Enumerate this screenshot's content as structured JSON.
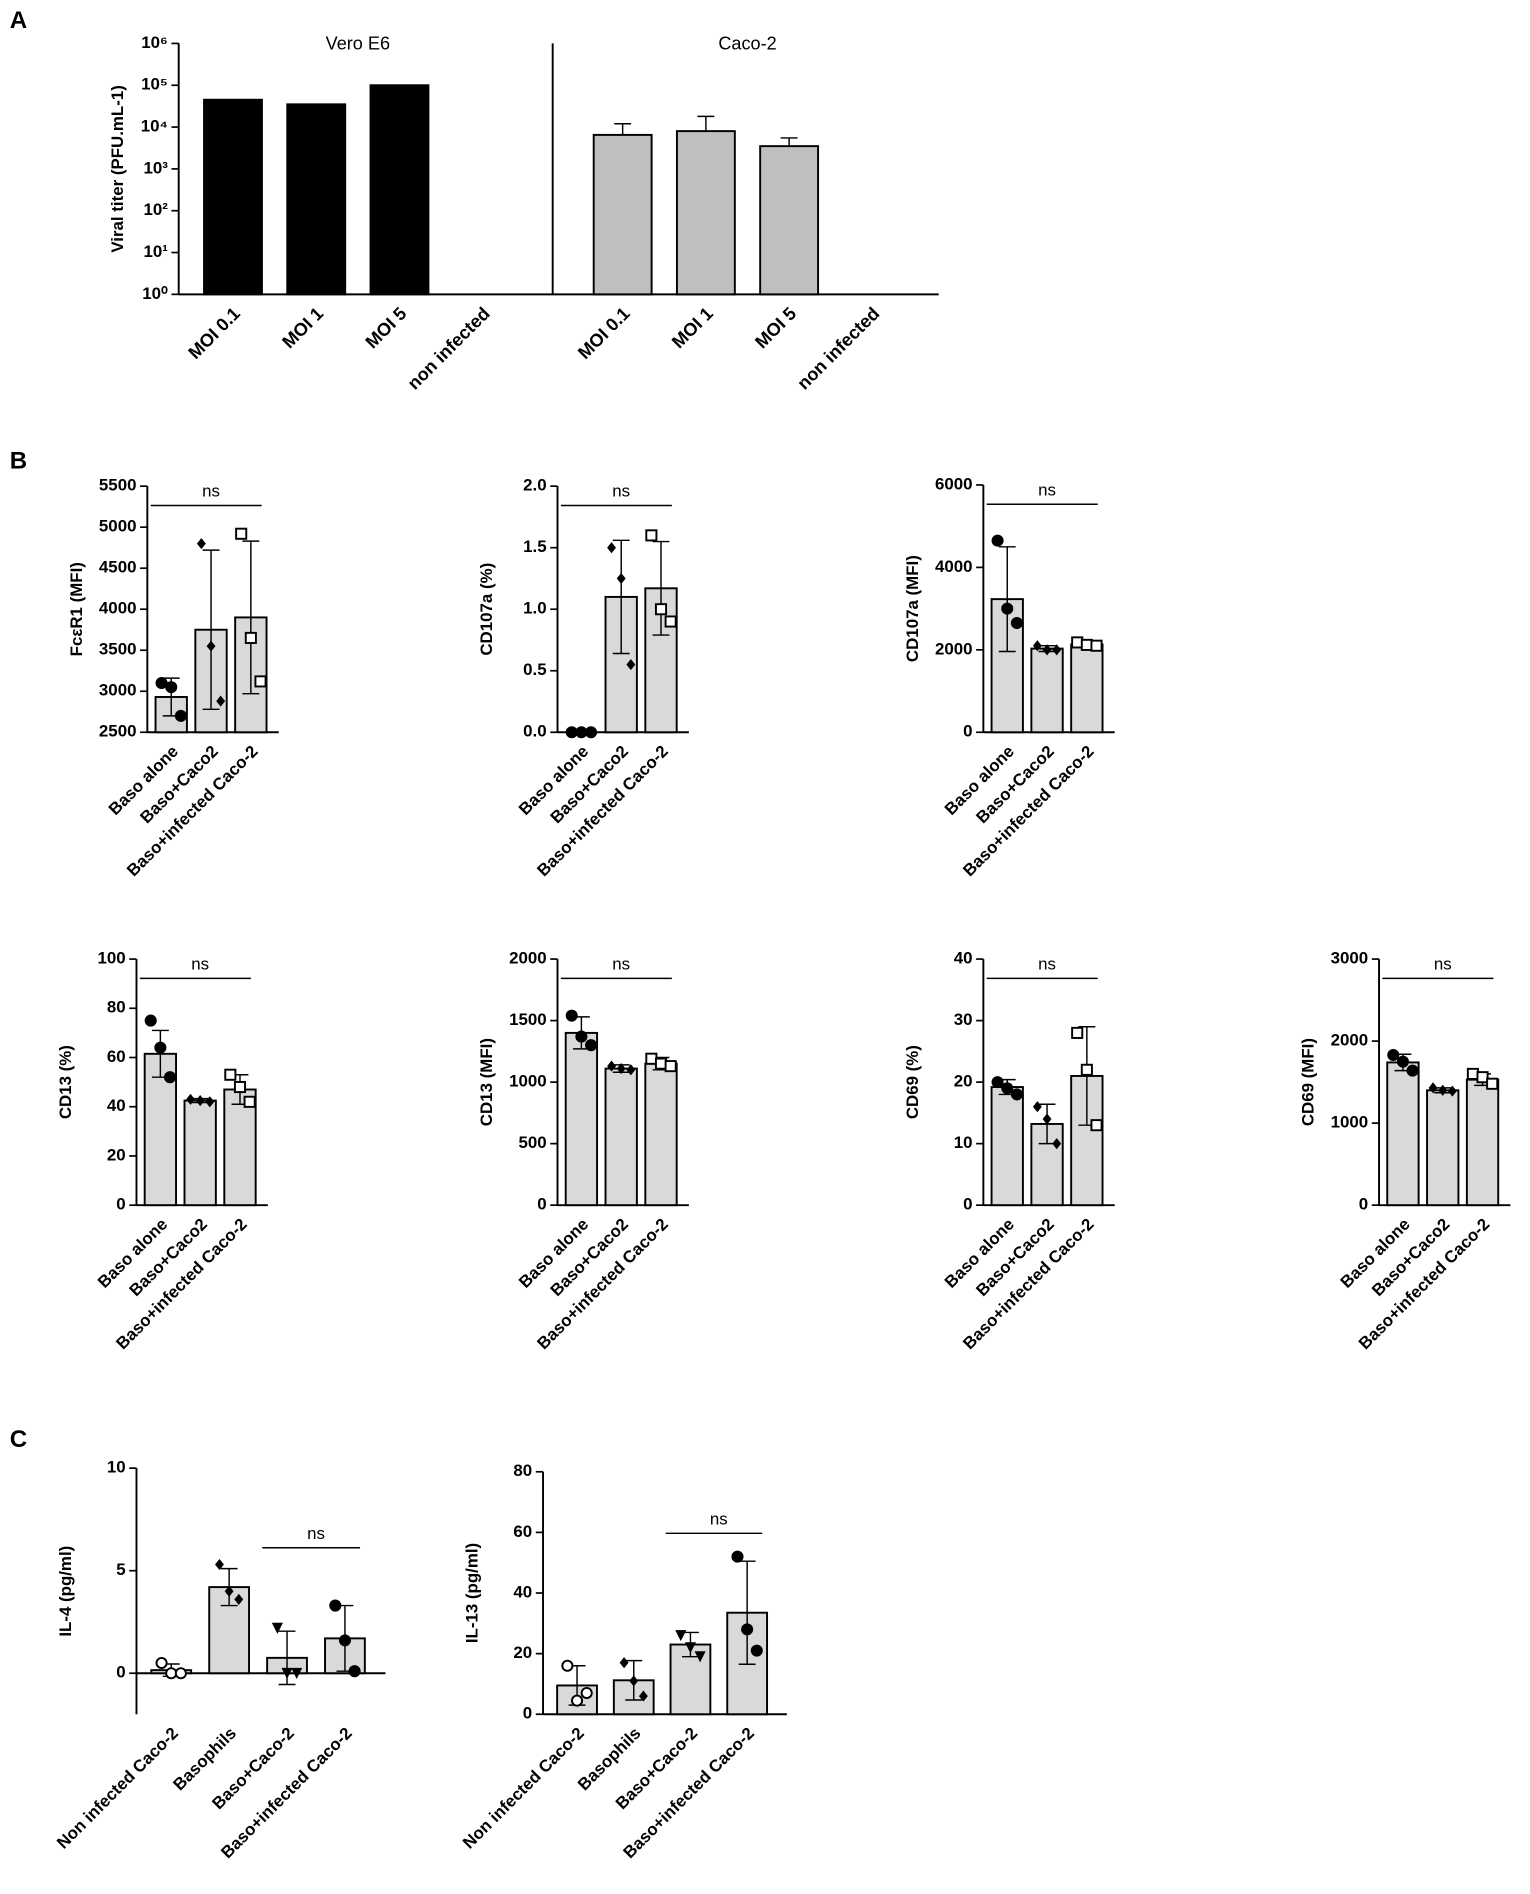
{
  "chart_data": [
    {
      "type": "bar",
      "panel": "A",
      "ylabel": "Viral titer (PFU.mL-1)",
      "log": true,
      "group_labels": [
        "Vero E6",
        "Caco-2"
      ],
      "group_colors": [
        "#000000",
        "#bfbfbf"
      ],
      "categories": [
        "MOI 0.1",
        "MOI 1",
        "MOI 5",
        "non infected",
        "MOI 0.1",
        "MOI 1",
        "MOI 5",
        "non infected"
      ],
      "values": [
        45000,
        35000,
        100000,
        null,
        6500,
        8000,
        3500,
        null
      ],
      "errors": [
        null,
        null,
        null,
        null,
        5500,
        10000,
        2000,
        null
      ],
      "ylim": [
        1,
        1000000
      ],
      "yticks": [
        {
          "value": 1,
          "label": "10⁰"
        },
        {
          "value": 10,
          "label": "10¹"
        },
        {
          "value": 100,
          "label": "10²"
        },
        {
          "value": 1000,
          "label": "10³"
        },
        {
          "value": 10000,
          "label": "10⁴"
        },
        {
          "value": 100000,
          "label": "10⁵"
        },
        {
          "value": 1000000,
          "label": "10⁶"
        }
      ]
    },
    {
      "type": "bar",
      "panel": "B",
      "ylabel": "FcεR1 (MFI)",
      "color": "#d9d9d9",
      "categories": [
        "Baso alone",
        "Baso+Caco2",
        "Baso+infected Caco-2"
      ],
      "markers": [
        "circle",
        "diamond",
        "square-open"
      ],
      "values": [
        2930,
        3750,
        3900
      ],
      "errors": [
        230,
        970,
        930
      ],
      "points": [
        [
          3100,
          3050,
          2700
        ],
        [
          4800,
          3550,
          2880
        ],
        [
          4920,
          3650,
          3120
        ]
      ],
      "comparison": {
        "label": "ns",
        "between": [
          "Baso alone",
          "Baso+infected Caco-2"
        ]
      },
      "ylim": [
        2500,
        5500
      ],
      "yticks": [
        2500,
        3000,
        3500,
        4000,
        4500,
        5000,
        5500
      ]
    },
    {
      "type": "bar",
      "ylabel": "CD107a (%)",
      "color": "#d9d9d9",
      "categories": [
        "Baso alone",
        "Baso+Caco2",
        "Baso+infected Caco-2"
      ],
      "markers": [
        "circle",
        "diamond",
        "square-open"
      ],
      "values": [
        0,
        1.1,
        1.17
      ],
      "errors": [
        0,
        0.46,
        0.38
      ],
      "points": [
        [
          0,
          0,
          0
        ],
        [
          1.5,
          1.25,
          0.55
        ],
        [
          1.6,
          1.0,
          0.9
        ]
      ],
      "comparison": {
        "label": "ns",
        "between": [
          "Baso alone",
          "Baso+infected Caco-2"
        ]
      },
      "ylim": [
        0,
        2
      ],
      "yticks": [
        {
          "value": 0,
          "label": "0.0"
        },
        0.5,
        {
          "value": 1,
          "label": "1.0"
        },
        1.5,
        {
          "value": 2,
          "label": "2.0"
        }
      ]
    },
    {
      "type": "bar",
      "ylabel": "CD107a (MFI)",
      "color": "#d9d9d9",
      "categories": [
        "Baso alone",
        "Baso+Caco2",
        "Baso+infected Caco-2"
      ],
      "markers": [
        "circle",
        "diamond",
        "square-open"
      ],
      "values": [
        3230,
        2030,
        2130
      ],
      "errors": [
        1270,
        70,
        60
      ],
      "points": [
        [
          4650,
          3000,
          2650
        ],
        [
          2100,
          2000,
          2000
        ],
        [
          2180,
          2120,
          2100
        ]
      ],
      "comparison": {
        "label": "ns",
        "between": [
          "Baso alone",
          "Baso+infected Caco-2"
        ]
      },
      "ylim": [
        0,
        6000
      ],
      "yticks": [
        0,
        2000,
        4000,
        6000
      ]
    },
    {
      "type": "bar",
      "ylabel": "CD13 (%)",
      "color": "#d9d9d9",
      "categories": [
        "Baso alone",
        "Baso+Caco2",
        "Baso+infected Caco-2"
      ],
      "markers": [
        "circle",
        "diamond",
        "square-open"
      ],
      "values": [
        61.5,
        42.5,
        47
      ],
      "errors": [
        9.5,
        0.8,
        6
      ],
      "points": [
        [
          75,
          64,
          52
        ],
        [
          43,
          42.5,
          42
        ],
        [
          53,
          48,
          42
        ]
      ],
      "comparison": {
        "label": "ns",
        "between": [
          "Baso alone",
          "Baso+infected Caco-2"
        ]
      },
      "ylim": [
        0,
        100
      ],
      "yticks": [
        0,
        20,
        40,
        60,
        80,
        100
      ]
    },
    {
      "type": "bar",
      "ylabel": "CD13 (MFI)",
      "color": "#d9d9d9",
      "categories": [
        "Baso alone",
        "Baso+Caco2",
        "Baso+infected Caco-2"
      ],
      "markers": [
        "circle",
        "diamond",
        "square-open"
      ],
      "values": [
        1400,
        1110,
        1150
      ],
      "errors": [
        130,
        30,
        50
      ],
      "points": [
        [
          1540,
          1370,
          1300
        ],
        [
          1130,
          1110,
          1100
        ],
        [
          1190,
          1150,
          1130
        ]
      ],
      "comparison": {
        "label": "ns",
        "between": [
          "Baso alone",
          "Baso+infected Caco-2"
        ]
      },
      "ylim": [
        0,
        2000
      ],
      "yticks": [
        0,
        500,
        1000,
        1500,
        2000
      ]
    },
    {
      "type": "bar",
      "ylabel": "CD69 (%)",
      "color": "#d9d9d9",
      "categories": [
        "Baso alone",
        "Baso+Caco2",
        "Baso+infected Caco-2"
      ],
      "markers": [
        "circle",
        "diamond",
        "square-open"
      ],
      "values": [
        19.2,
        13.2,
        21
      ],
      "errors": [
        1.2,
        3.2,
        8
      ],
      "points": [
        [
          20,
          19,
          18
        ],
        [
          16,
          14,
          10
        ],
        [
          28,
          22,
          13
        ]
      ],
      "comparison": {
        "label": "ns",
        "between": [
          "Baso alone",
          "Baso+infected Caco-2"
        ]
      },
      "ylim": [
        0,
        40
      ],
      "yticks": [
        0,
        10,
        20,
        30,
        40
      ]
    },
    {
      "type": "bar",
      "ylabel": "CD69 (MFI)",
      "color": "#d9d9d9",
      "categories": [
        "Baso alone",
        "Baso+Caco2",
        "Baso+infected Caco-2"
      ],
      "markers": [
        "circle",
        "diamond",
        "square-open"
      ],
      "values": [
        1740,
        1400,
        1530
      ],
      "errors": [
        100,
        30,
        70
      ],
      "points": [
        [
          1830,
          1750,
          1640
        ],
        [
          1430,
          1400,
          1390
        ],
        [
          1600,
          1560,
          1480
        ]
      ],
      "comparison": {
        "label": "ns",
        "between": [
          "Baso alone",
          "Baso+infected Caco-2"
        ]
      },
      "ylim": [
        0,
        3000
      ],
      "yticks": [
        0,
        1000,
        2000,
        3000
      ]
    },
    {
      "type": "bar",
      "panel": "C",
      "ylabel": "IL-4 (pg/ml)",
      "color": "#d9d9d9",
      "categories": [
        "Non infected Caco-2",
        "Basophils",
        "Baso+Caco-2",
        "Baso+infected Caco-2"
      ],
      "markers": [
        "circle-open",
        "diamond",
        "triangle-down",
        "circle"
      ],
      "values": [
        0.15,
        4.2,
        0.75,
        1.7
      ],
      "errors": [
        0.3,
        0.9,
        1.3,
        1.6
      ],
      "points": [
        [
          0.5,
          0,
          0
        ],
        [
          5.3,
          4.0,
          3.6
        ],
        [
          2.2,
          0,
          0
        ],
        [
          3.3,
          1.6,
          0.1
        ]
      ],
      "comparison": {
        "label": "ns",
        "between": [
          "Baso+Caco-2",
          "Baso+infected Caco-2"
        ]
      },
      "ylim": [
        -2,
        10
      ],
      "yticks": [
        0,
        5,
        10
      ]
    },
    {
      "type": "bar",
      "ylabel": "IL-13 (pg/ml)",
      "color": "#d9d9d9",
      "categories": [
        "Non infected Caco-2",
        "Basophils",
        "Baso+Caco-2",
        "Baso+infected Caco-2"
      ],
      "markers": [
        "circle-open",
        "diamond",
        "triangle-down",
        "circle"
      ],
      "values": [
        9.5,
        11.2,
        23,
        33.5
      ],
      "errors": [
        6.5,
        6.5,
        4,
        17
      ],
      "points": [
        [
          16,
          4.5,
          7
        ],
        [
          17,
          11,
          6
        ],
        [
          26,
          22,
          19
        ],
        [
          52,
          28,
          21
        ]
      ],
      "comparison": {
        "label": "ns",
        "between": [
          "Baso+Caco-2",
          "Baso+infected Caco-2"
        ]
      },
      "ylim": [
        0,
        80
      ],
      "yticks": [
        0,
        20,
        40,
        60,
        80
      ]
    }
  ]
}
